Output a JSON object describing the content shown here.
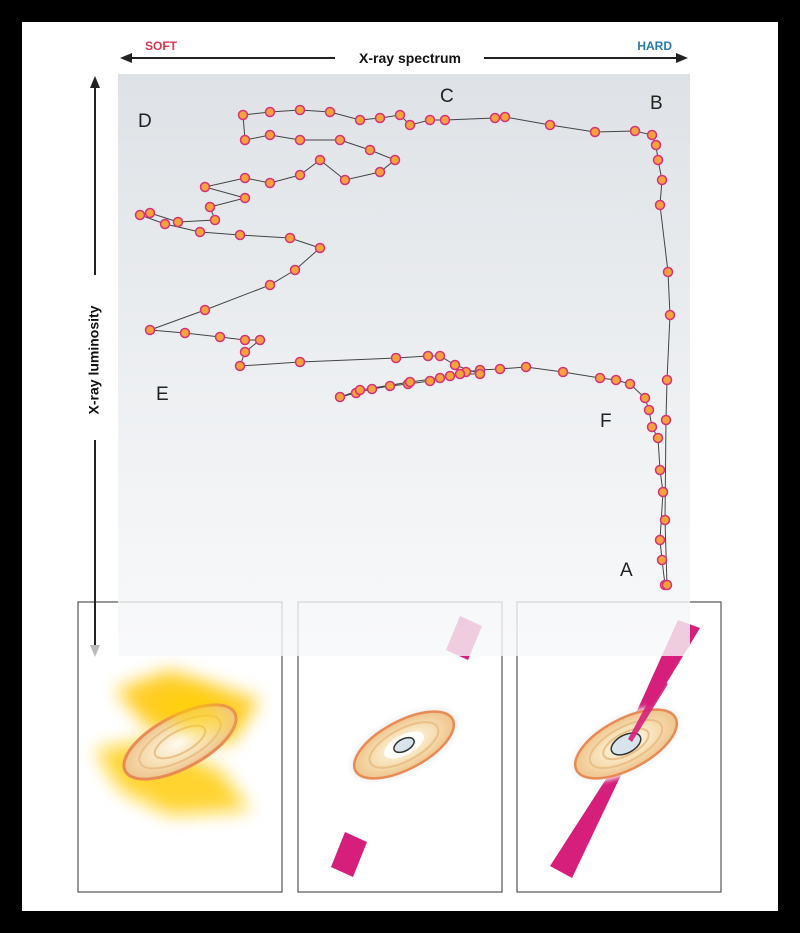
{
  "axes": {
    "soft": "SOFT",
    "spectrum": "X-ray spectrum",
    "hard": "HARD",
    "luminosity": "X-ray luminosity"
  },
  "labels": [
    "A",
    "B",
    "C",
    "D",
    "E",
    "F"
  ]
}
